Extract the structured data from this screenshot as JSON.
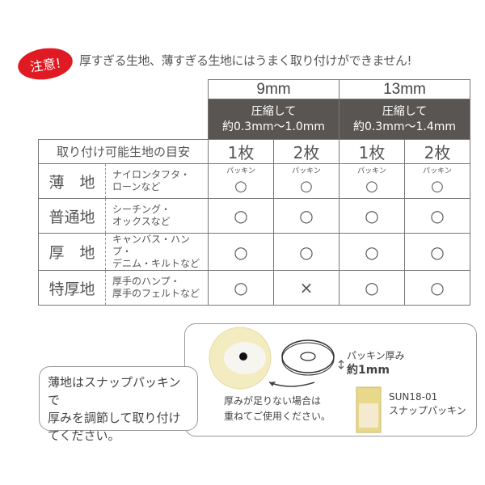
{
  "warning": {
    "badge": "注意!",
    "text": "厚すぎる生地、薄すぎる生地にはうまく取り付けができません!"
  },
  "table": {
    "sizes": [
      {
        "label": "9mm",
        "compress": [
          "圧縮して",
          "約0.3mm～1.0mm"
        ]
      },
      {
        "label": "13mm",
        "compress": [
          "圧縮して",
          "約0.3mm～1.4mm"
        ]
      }
    ],
    "guide_label": "取り付け可能生地の目安",
    "counts": [
      "1枚",
      "2枚",
      "1枚",
      "2枚"
    ],
    "rows": [
      {
        "name": "薄　地",
        "examples": [
          "ナイロンタフタ・",
          "ローンなど"
        ],
        "note": "パッキン",
        "marks": [
          "○",
          "○",
          "○",
          "○"
        ]
      },
      {
        "name": "普通地",
        "examples": [
          "シーチング・",
          "オックスなど"
        ],
        "note": "",
        "marks": [
          "○",
          "○",
          "○",
          "○"
        ]
      },
      {
        "name": "厚　地",
        "examples": [
          "キャンバス・ハンプ・",
          "デニム・キルトなど"
        ],
        "note": "",
        "marks": [
          "○",
          "○",
          "○",
          "○"
        ]
      },
      {
        "name": "特厚地",
        "examples": [
          "厚手のハンプ・",
          "厚手のフェルトなど"
        ],
        "note": "",
        "marks": [
          "○",
          "×",
          "○",
          "○"
        ]
      }
    ]
  },
  "info": {
    "thickness_label": "パッキン厚み",
    "thickness_value": "約1mm",
    "stack_note": [
      "厚みが足りない場合は",
      "重ねてご使用ください。"
    ],
    "product_code": "SUN18-01",
    "product_name": "スナップパッキン",
    "callout": [
      "薄地はスナップパッキンで",
      "厚みを調節して取り付け",
      "てください。"
    ]
  }
}
